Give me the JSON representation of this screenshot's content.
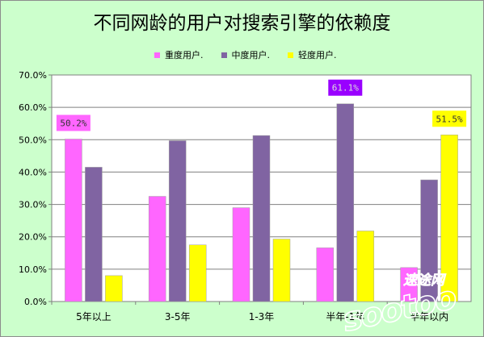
{
  "chart_data": {
    "type": "bar",
    "title": "不同网龄的用户对搜索引擎的依赖度",
    "categories": [
      "5年以上",
      "3-5年",
      "1-3年",
      "半年-1年",
      "半年以内"
    ],
    "series": [
      {
        "name": "重度用户.",
        "color": "#ff66ff",
        "values": [
          50.2,
          32.5,
          29.0,
          16.6,
          10.5
        ]
      },
      {
        "name": "中度用户.",
        "color": "#8064a2",
        "values": [
          41.5,
          49.7,
          51.3,
          61.1,
          37.6
        ]
      },
      {
        "name": "轻度用户.",
        "color": "#ffff00",
        "values": [
          8.0,
          17.5,
          19.3,
          21.8,
          51.5
        ]
      }
    ],
    "ylim": [
      0,
      70
    ],
    "yticks": [
      "0.0%",
      "10.0%",
      "20.0%",
      "30.0%",
      "40.0%",
      "50.0%",
      "60.0%",
      "70.0%"
    ],
    "annotations": [
      {
        "text": "50.2%",
        "category": 0,
        "series": 0,
        "bg": "#ff66ff",
        "color": "#333333"
      },
      {
        "text": "61.1%",
        "category": 3,
        "series": 1,
        "bg": "#9900ff",
        "color": "#dddddd"
      },
      {
        "text": "51.5%",
        "category": 4,
        "series": 2,
        "bg": "#ffff00",
        "color": "#333333"
      }
    ],
    "grid": true,
    "legend": "top"
  },
  "watermark": {
    "text": "速途网",
    "logo": "sootoo"
  }
}
